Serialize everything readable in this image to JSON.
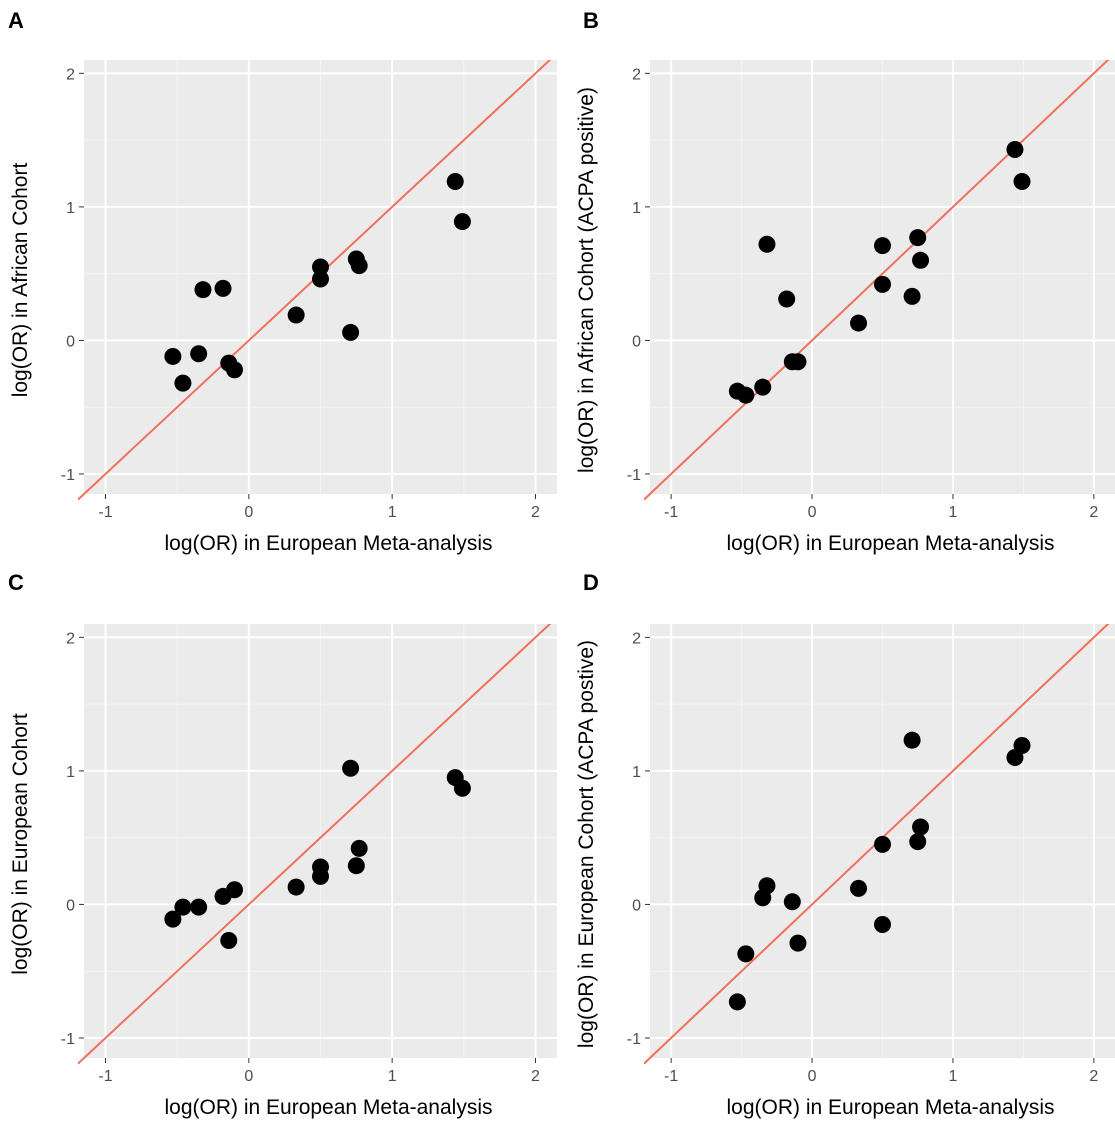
{
  "chart_data": [
    {
      "type": "scatter",
      "panel_label": "A",
      "xlabel": "log(OR) in European Meta-analysis",
      "ylabel": "log(OR) in African Cohort",
      "xlim": [
        -1.15,
        2.15
      ],
      "ylim": [
        -1.15,
        2.1
      ],
      "xticks": [
        "-1",
        "0",
        "1",
        "2"
      ],
      "yticks": [
        "-1",
        "0",
        "1",
        "2"
      ],
      "grid": true,
      "reference_line": "y = x",
      "x": [
        -0.53,
        -0.46,
        -0.35,
        -0.32,
        -0.18,
        -0.14,
        -0.1,
        0.33,
        0.5,
        0.5,
        0.71,
        0.75,
        0.77,
        1.44,
        1.49
      ],
      "y": [
        -0.12,
        -0.32,
        -0.1,
        0.38,
        0.39,
        -0.17,
        -0.22,
        0.19,
        0.46,
        0.55,
        0.06,
        0.61,
        0.56,
        1.19,
        0.89
      ]
    },
    {
      "type": "scatter",
      "panel_label": "B",
      "xlabel": "log(OR) in European Meta-analysis",
      "ylabel": "log(OR) in African Cohort (ACPA positive)",
      "xlim": [
        -1.15,
        2.15
      ],
      "ylim": [
        -1.15,
        2.1
      ],
      "xticks": [
        "-1",
        "0",
        "1",
        "2"
      ],
      "yticks": [
        "-1",
        "0",
        "1",
        "2"
      ],
      "grid": true,
      "reference_line": "y = x",
      "x": [
        -0.53,
        -0.47,
        -0.35,
        -0.32,
        -0.18,
        -0.14,
        -0.1,
        0.33,
        0.5,
        0.5,
        0.71,
        0.75,
        0.77,
        1.44,
        1.49
      ],
      "y": [
        -0.38,
        -0.41,
        -0.35,
        0.72,
        0.31,
        -0.16,
        -0.16,
        0.13,
        0.71,
        0.42,
        0.33,
        0.77,
        0.6,
        1.43,
        1.19
      ]
    },
    {
      "type": "scatter",
      "panel_label": "C",
      "xlabel": "log(OR) in European Meta-analysis",
      "ylabel": "log(OR) in European Cohort",
      "xlim": [
        -1.15,
        2.15
      ],
      "ylim": [
        -1.15,
        2.1
      ],
      "xticks": [
        "-1",
        "0",
        "1",
        "2"
      ],
      "yticks": [
        "-1",
        "0",
        "1",
        "2"
      ],
      "grid": true,
      "reference_line": "y = x",
      "x": [
        -0.53,
        -0.46,
        -0.35,
        -0.18,
        -0.14,
        -0.1,
        0.33,
        0.5,
        0.5,
        0.71,
        0.75,
        0.77,
        1.44,
        1.49
      ],
      "y": [
        -0.11,
        -0.02,
        -0.02,
        0.06,
        -0.27,
        0.11,
        0.13,
        0.28,
        0.21,
        1.02,
        0.29,
        0.42,
        0.95,
        0.87
      ]
    },
    {
      "type": "scatter",
      "panel_label": "D",
      "xlabel": "log(OR) in European Meta-analysis",
      "ylabel": "log(OR) in European Cohort (ACPA postive)",
      "xlim": [
        -1.15,
        2.15
      ],
      "ylim": [
        -1.15,
        2.1
      ],
      "xticks": [
        "-1",
        "0",
        "1",
        "2"
      ],
      "yticks": [
        "-1",
        "0",
        "1",
        "2"
      ],
      "grid": true,
      "reference_line": "y = x",
      "x": [
        -0.53,
        -0.47,
        -0.35,
        -0.32,
        -0.14,
        -0.1,
        0.33,
        0.5,
        0.5,
        0.71,
        0.75,
        0.77,
        1.44,
        1.49
      ],
      "y": [
        -0.73,
        -0.37,
        0.05,
        0.14,
        0.02,
        -0.29,
        0.12,
        0.45,
        -0.15,
        1.23,
        0.47,
        0.58,
        1.1,
        1.19
      ]
    }
  ],
  "colors": {
    "panel_background": "#ebebeb",
    "grid_major": "#ffffff",
    "grid_minor": "#f4f4f4",
    "reference_line": "#f0705a",
    "points": "#000000"
  }
}
